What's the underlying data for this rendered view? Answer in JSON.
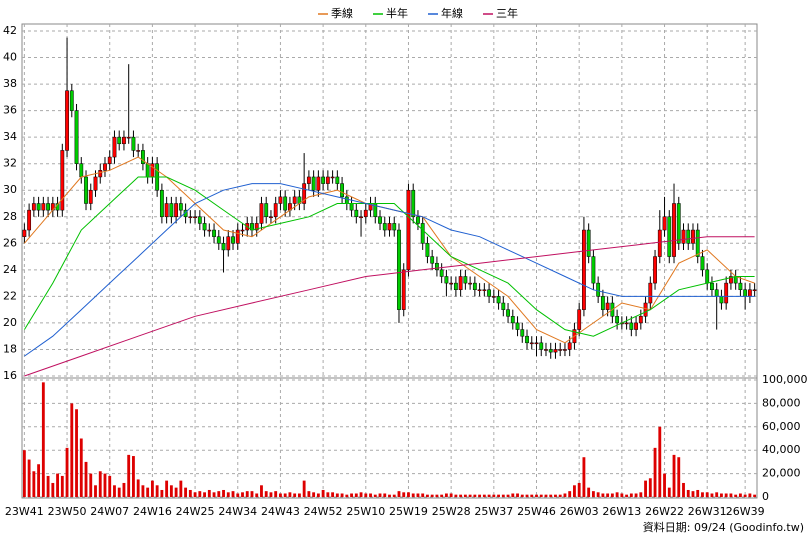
{
  "chart_data": {
    "type": "candlestick",
    "legend": "top",
    "grid": true,
    "up_color": "#ff0000",
    "down_color": "#00cc00",
    "volume_color": "#dd0000",
    "categories": [
      "23W41",
      null,
      null,
      null,
      null,
      null,
      null,
      null,
      null,
      "23W50",
      null,
      null,
      null,
      null,
      null,
      null,
      null,
      null,
      "24W07",
      null,
      null,
      null,
      null,
      null,
      null,
      null,
      null,
      "24W16",
      null,
      null,
      null,
      null,
      null,
      null,
      null,
      null,
      "24W25",
      null,
      null,
      null,
      null,
      null,
      null,
      null,
      null,
      "24W34",
      null,
      null,
      null,
      null,
      null,
      null,
      null,
      null,
      "24W43",
      null,
      null,
      null,
      null,
      null,
      null,
      null,
      null,
      "24W52",
      null,
      null,
      null,
      null,
      null,
      null,
      null,
      null,
      "25W10",
      null,
      null,
      null,
      null,
      null,
      null,
      null,
      null,
      "25W19",
      null,
      null,
      null,
      null,
      null,
      null,
      null,
      null,
      "25W28",
      null,
      null,
      null,
      null,
      null,
      null,
      null,
      null,
      "25W37",
      null,
      null,
      null,
      null,
      null,
      null,
      null,
      null,
      "25W46",
      null,
      null,
      null,
      null,
      null,
      null,
      null,
      null,
      "26W03",
      null,
      null,
      null,
      null,
      null,
      null,
      null,
      null,
      "26W13",
      null,
      null,
      null,
      null,
      null,
      null,
      null,
      null,
      "26W22",
      null,
      null,
      null,
      null,
      null,
      null,
      null,
      null,
      "26W31",
      null,
      null,
      null,
      null,
      null,
      null,
      null,
      "26W39",
      null,
      null
    ],
    "open": [
      26.5,
      27,
      28.5,
      29,
      28.5,
      29,
      28.5,
      29,
      28.5,
      33,
      37.5,
      36,
      32,
      31,
      29,
      30,
      31,
      31.5,
      32,
      32.5,
      34,
      33.5,
      34,
      34,
      33,
      33,
      32,
      31,
      32,
      30,
      28,
      29,
      28,
      29,
      28.5,
      28,
      28,
      28,
      27.5,
      27,
      27,
      26.5,
      26,
      25.5,
      26.5,
      26,
      27,
      27,
      27.5,
      27,
      27.5,
      29,
      28,
      28,
      29,
      29.5,
      28.5,
      29,
      29.5,
      29,
      30.5,
      31,
      30,
      31,
      30.5,
      31,
      31,
      30.5,
      29.5,
      29,
      28.5,
      28,
      28,
      28.5,
      29,
      28,
      27.5,
      27,
      27.5,
      27,
      21,
      24,
      30,
      28,
      27.5,
      26,
      25,
      24.5,
      24,
      23.5,
      23,
      23,
      22.5,
      23.5,
      23,
      23,
      22.5,
      22.5,
      22.5,
      22,
      22,
      21.5,
      21,
      20.5,
      20,
      19.5,
      19,
      18.5,
      18.5,
      18.5,
      18,
      18,
      17.8,
      18,
      18,
      18,
      18.5,
      19.5,
      21,
      27,
      25,
      23,
      22,
      21,
      21.5,
      20.5,
      20,
      20,
      20,
      19.5,
      20,
      20.5,
      21.5,
      23,
      25,
      27,
      28,
      25,
      29,
      26,
      27,
      26,
      27,
      25,
      24,
      23,
      22.5,
      22,
      21.5,
      23,
      23.5,
      23,
      22.5,
      22,
      22.5
    ],
    "high": [
      27.5,
      29,
      29.5,
      29.5,
      29.5,
      29.5,
      29.5,
      29.5,
      33.5,
      41.5,
      38,
      36.5,
      32.5,
      31.5,
      30.5,
      31.5,
      32,
      32.5,
      33,
      34.5,
      34.5,
      34.5,
      39.5,
      34.5,
      33.5,
      33.5,
      32.5,
      32.5,
      32.5,
      30.5,
      29.5,
      29.5,
      29.5,
      29.5,
      29,
      28.5,
      28.5,
      28.5,
      28,
      27.5,
      27.5,
      27,
      26.5,
      27,
      27,
      27.5,
      27.5,
      28,
      28,
      28,
      29.5,
      29.5,
      28.5,
      29.5,
      30,
      30,
      29.5,
      30,
      30,
      32.8,
      31.5,
      31.5,
      31.5,
      31.5,
      31.5,
      31.5,
      31.5,
      31,
      30,
      29.5,
      29,
      28.5,
      29,
      29.5,
      29.5,
      28.5,
      28,
      28,
      28,
      27.5,
      24.5,
      30.5,
      30.5,
      28.5,
      28,
      26.5,
      25.5,
      25,
      24.5,
      24,
      23.5,
      23.5,
      24,
      24,
      23.5,
      23.5,
      23,
      23,
      23,
      22.5,
      22.5,
      22,
      21.5,
      21,
      20.5,
      20,
      19.5,
      19,
      19,
      19,
      18.5,
      18.5,
      18.5,
      18.5,
      18.5,
      19,
      20,
      21.5,
      28,
      27.5,
      25.5,
      23.5,
      22.5,
      22,
      22,
      21,
      20.5,
      20.5,
      20.5,
      20.5,
      21,
      22,
      23.5,
      25.5,
      28.5,
      29.5,
      28.5,
      30.5,
      29.5,
      27.5,
      27.5,
      27.5,
      27.5,
      25.5,
      24.5,
      23.5,
      23,
      22.5,
      23.5,
      24,
      24,
      23.5,
      23,
      23,
      23
    ],
    "low": [
      26,
      26.5,
      28,
      28,
      28,
      28,
      28,
      28,
      28,
      32.5,
      35.5,
      31.5,
      30.5,
      28.5,
      28.5,
      29.5,
      30.5,
      31,
      31.5,
      32,
      33,
      33,
      33.5,
      32.5,
      32.5,
      31.5,
      30.5,
      30.5,
      29.5,
      27.5,
      27.5,
      27.5,
      27.5,
      28,
      27.5,
      27.5,
      27.5,
      27,
      26.5,
      26.5,
      26,
      25.5,
      23.8,
      25,
      25.5,
      25.5,
      26.5,
      26.5,
      26.5,
      26.5,
      27,
      27.5,
      27.5,
      27.5,
      28.5,
      28,
      28,
      28.5,
      28.5,
      28.5,
      30,
      29.5,
      29.5,
      30,
      30,
      30.5,
      30,
      29,
      28.5,
      28,
      27.5,
      26.5,
      27.5,
      28,
      27.5,
      27,
      26.5,
      26.5,
      26.5,
      20,
      20.5,
      23.5,
      27.5,
      27,
      25.5,
      24.5,
      24,
      23.5,
      23,
      22,
      22.5,
      22,
      22,
      22.5,
      22.5,
      22,
      22,
      22,
      21.5,
      21.5,
      21,
      20.5,
      20,
      19.5,
      19,
      18.5,
      18,
      18,
      17.5,
      17.5,
      17.5,
      17.3,
      17.3,
      17.5,
      17.5,
      17.5,
      18,
      19,
      20.5,
      24.5,
      22.5,
      21.5,
      20.5,
      20.5,
      20,
      19.5,
      19.5,
      19.5,
      19,
      19,
      19.5,
      20,
      21,
      22.5,
      24.5,
      26.5,
      24.5,
      24.5,
      25.5,
      25.5,
      25.5,
      25.5,
      24.5,
      23.5,
      22.5,
      22,
      19.5,
      21,
      21,
      22.5,
      22.5,
      22,
      21,
      21.5,
      22
    ],
    "close": [
      27,
      28.5,
      29,
      28.5,
      29,
      28.5,
      29,
      28.5,
      33,
      37.5,
      36,
      32,
      31,
      29,
      30,
      31,
      31.5,
      32,
      32.5,
      34,
      33.5,
      34,
      34,
      33,
      33,
      32,
      31,
      32,
      30,
      28,
      29,
      28,
      29,
      28.5,
      28,
      28,
      28,
      27.5,
      27,
      27,
      26.5,
      26,
      25.5,
      26.5,
      26,
      27,
      27,
      27.5,
      27,
      27.5,
      29,
      28,
      28,
      29,
      29.5,
      28.5,
      29,
      29.5,
      29,
      30.5,
      31,
      30,
      31,
      30.5,
      31,
      31,
      30.5,
      29.5,
      29,
      28.5,
      28,
      28,
      28.5,
      29,
      28,
      27.5,
      27,
      27.5,
      27,
      21,
      24,
      30,
      28,
      27.5,
      26,
      25,
      24.5,
      24,
      23.5,
      23,
      23,
      22.5,
      23.5,
      23,
      23,
      22.5,
      22.5,
      22.5,
      22,
      22,
      21.5,
      21,
      20.5,
      20,
      19.5,
      19,
      18.5,
      18.5,
      18.5,
      18,
      18,
      17.8,
      18,
      18,
      18,
      18.5,
      19.5,
      21,
      27,
      25,
      23,
      22,
      21,
      21.5,
      20.5,
      20,
      20,
      20,
      19.5,
      20,
      20.5,
      21.5,
      23,
      25,
      27,
      28,
      25,
      29,
      26,
      27,
      26,
      27,
      25,
      24,
      23,
      22.5,
      22,
      21.5,
      23,
      23.5,
      23,
      22.5,
      22,
      22.5,
      22.5
    ],
    "volume": [
      40000,
      32000,
      22000,
      28000,
      98000,
      18000,
      12000,
      20000,
      18000,
      42000,
      80000,
      75000,
      50000,
      30000,
      20000,
      10000,
      22000,
      20000,
      18000,
      10000,
      8000,
      12000,
      36000,
      35000,
      15000,
      10000,
      8000,
      14000,
      10000,
      6000,
      14000,
      10000,
      8000,
      14000,
      8000,
      6000,
      4000,
      5000,
      4000,
      6000,
      4000,
      5000,
      6000,
      4000,
      5000,
      3000,
      4000,
      5000,
      5000,
      3000,
      10000,
      5000,
      4000,
      5000,
      3000,
      3000,
      4000,
      3000,
      3000,
      14000,
      5000,
      4000,
      3000,
      6000,
      4000,
      4000,
      3000,
      3000,
      2000,
      3000,
      3000,
      4000,
      3000,
      3000,
      2000,
      3000,
      3000,
      2000,
      2000,
      5000,
      4000,
      4000,
      3000,
      3000,
      3000,
      2000,
      2000,
      2000,
      2000,
      3000,
      3000,
      2000,
      2000,
      2000,
      2000,
      2000,
      2000,
      2000,
      2000,
      2000,
      2000,
      2000,
      2000,
      3000,
      3000,
      2000,
      2000,
      2000,
      2000,
      2000,
      2000,
      2000,
      2000,
      2000,
      3000,
      5000,
      10000,
      12000,
      34000,
      8000,
      5000,
      4000,
      3000,
      3000,
      3000,
      4000,
      3000,
      2000,
      3000,
      3000,
      4000,
      14000,
      16000,
      42000,
      60000,
      20000,
      8000,
      36000,
      34000,
      12000,
      6000,
      5000,
      6000,
      4000,
      4000,
      3000,
      4000,
      3000,
      3000,
      3000,
      2000,
      3000,
      2000,
      3000,
      2000
    ],
    "series": [
      {
        "name": "季線",
        "color": "#e07820",
        "x": [
          0,
          6,
          12,
          18,
          24,
          30,
          36,
          42,
          48,
          54,
          60,
          66,
          72,
          78,
          84,
          90,
          96,
          102,
          108,
          114,
          120,
          126,
          132,
          138,
          144,
          150,
          154
        ],
        "values": [
          26,
          28.5,
          31,
          31.5,
          32.5,
          31,
          29,
          27,
          26.5,
          28,
          29.5,
          30,
          29,
          28.5,
          28,
          25,
          23.5,
          22,
          19.5,
          18.5,
          20,
          21.5,
          21,
          24.5,
          25.5,
          23.5,
          23
        ]
      },
      {
        "name": "半年",
        "color": "#00c000",
        "x": [
          0,
          6,
          12,
          18,
          24,
          30,
          36,
          42,
          48,
          54,
          60,
          66,
          72,
          78,
          84,
          90,
          96,
          102,
          108,
          114,
          120,
          126,
          132,
          138,
          144,
          150,
          154
        ],
        "values": [
          19.5,
          23,
          27,
          29,
          31,
          31,
          30,
          28.5,
          27,
          27.5,
          28,
          29,
          29,
          29,
          27,
          25,
          24,
          23,
          21,
          19.5,
          19,
          20,
          21,
          22.5,
          23,
          23.5,
          23.5
        ]
      },
      {
        "name": "年線",
        "color": "#2060d0",
        "x": [
          0,
          6,
          12,
          18,
          24,
          30,
          36,
          42,
          48,
          54,
          60,
          66,
          72,
          78,
          84,
          90,
          96,
          102,
          108,
          114,
          120,
          126,
          132,
          138,
          144,
          150,
          154
        ],
        "values": [
          17.5,
          19,
          21,
          23,
          25,
          27,
          29,
          30,
          30.5,
          30.5,
          30,
          29.5,
          29,
          28.5,
          28,
          27,
          26.5,
          25.5,
          24.5,
          23.5,
          22.5,
          22,
          22,
          22,
          22,
          22,
          22
        ]
      },
      {
        "name": "三年",
        "color": "#c01060",
        "x": [
          0,
          12,
          24,
          36,
          48,
          60,
          72,
          84,
          96,
          108,
          120,
          132,
          144,
          154
        ],
        "values": [
          16,
          17.5,
          19,
          20.5,
          21.5,
          22.5,
          23.5,
          24,
          24.5,
          25,
          25.5,
          26,
          26.5,
          26.5
        ]
      }
    ],
    "ylim": [
      16,
      42
    ],
    "yticks": [
      16,
      18,
      20,
      22,
      24,
      26,
      28,
      30,
      32,
      34,
      36,
      38,
      40,
      42
    ],
    "y2lim": [
      0,
      100000
    ],
    "y2ticks": [
      0,
      {
        "value": 20000,
        "label": "20,000"
      },
      {
        "value": 40000,
        "label": "40,000"
      },
      {
        "value": 60000,
        "label": "60,000"
      },
      {
        "value": 80000,
        "label": "80,000"
      },
      {
        "value": 100000,
        "label": "100,000"
      }
    ],
    "footer": "資料日期: 09/24  (Goodinfo.tw)"
  }
}
